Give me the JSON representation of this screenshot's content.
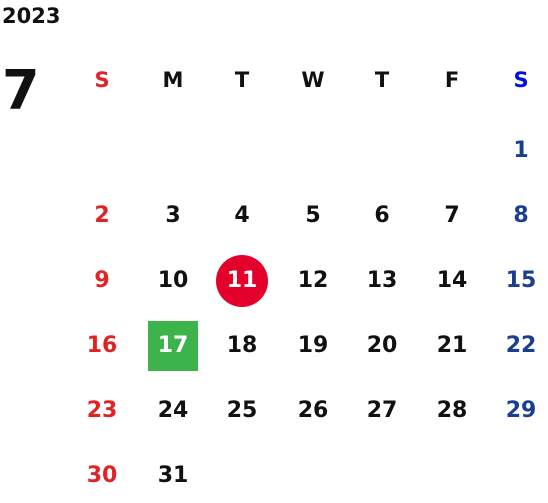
{
  "year": "2023",
  "month": "7",
  "weekdays": [
    "S",
    "M",
    "T",
    "W",
    "T",
    "F",
    "S"
  ],
  "colors": {
    "sunday": "#e02424",
    "saturday_header": "#0011dd",
    "saturday": "#1b3f8f",
    "weekday": "#111111"
  },
  "weeks": [
    [
      null,
      null,
      null,
      null,
      null,
      null,
      1
    ],
    [
      2,
      3,
      4,
      5,
      6,
      7,
      8
    ],
    [
      9,
      10,
      {
        "label": 11,
        "shape": "circle",
        "color": "#e3002b"
      },
      12,
      13,
      14,
      15
    ],
    [
      16,
      {
        "label": 17,
        "shape": "square",
        "color": "#3cb44b"
      },
      18,
      19,
      20,
      21,
      22
    ],
    [
      23,
      24,
      25,
      26,
      27,
      28,
      29
    ],
    [
      30,
      31,
      null,
      null,
      null,
      null,
      null
    ]
  ]
}
